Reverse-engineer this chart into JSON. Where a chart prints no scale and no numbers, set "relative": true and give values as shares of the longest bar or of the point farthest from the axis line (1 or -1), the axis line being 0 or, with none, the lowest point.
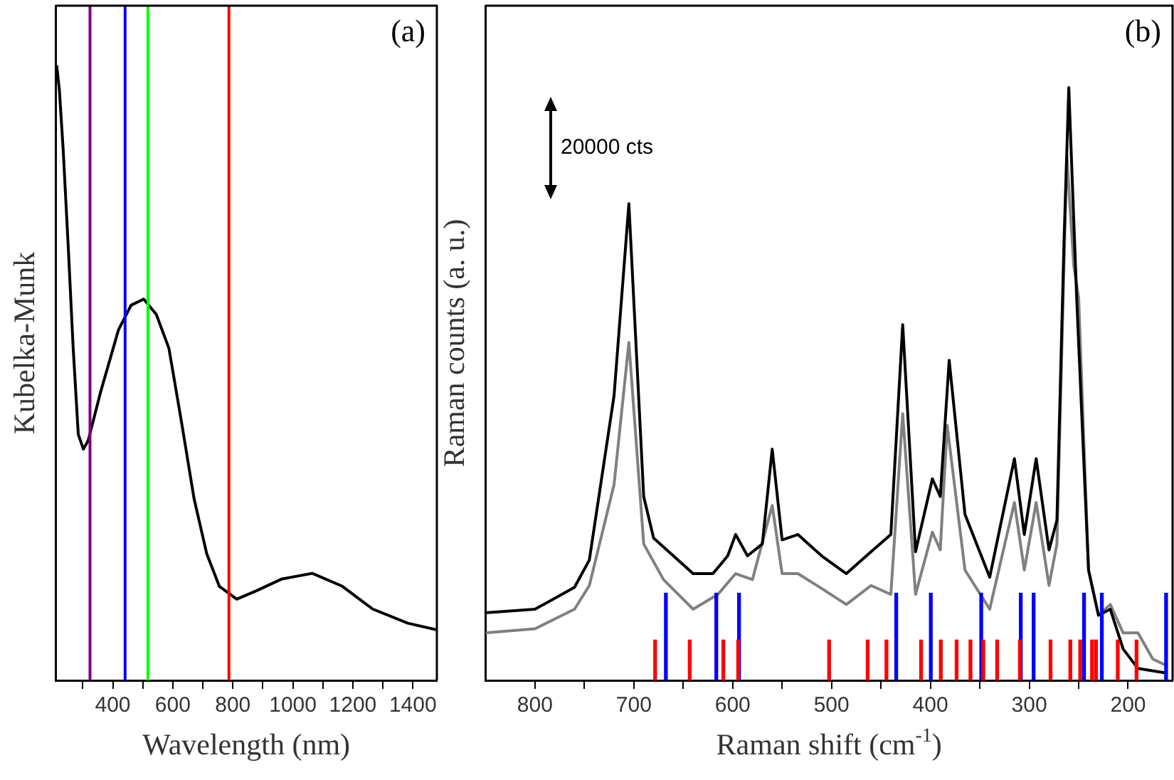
{
  "chart_data": [
    {
      "type": "line",
      "xlabel": "Wavelength (nm)",
      "ylabel": "Kubelka-Munk",
      "annotations": [
        "(a)"
      ],
      "relative": true,
      "legend": false,
      "grid": false,
      "xlim": [
        210,
        1480
      ],
      "xticks": [
        {
          "value": 300,
          "label": null
        },
        400,
        {
          "value": 500,
          "label": null
        },
        600,
        {
          "value": 700,
          "label": null
        },
        800,
        {
          "value": 900,
          "label": null
        },
        1000,
        {
          "value": 1100,
          "label": null
        },
        1200,
        {
          "value": 1300,
          "label": null
        },
        1400
      ],
      "series": [
        {
          "color": "#000000",
          "x": [
            213,
            222,
            235,
            252,
            268,
            285,
            302,
            318,
            360,
            419,
            461,
            503,
            545,
            587,
            629,
            671,
            713,
            755,
            813,
            880,
            964,
            1065,
            1165,
            1266,
            1383,
            1480
          ],
          "values": [
            1.0,
            0.96,
            0.86,
            0.7,
            0.54,
            0.4,
            0.376,
            0.39,
            0.47,
            0.57,
            0.61,
            0.62,
            0.595,
            0.54,
            0.42,
            0.295,
            0.206,
            0.153,
            0.132,
            0.146,
            0.165,
            0.174,
            0.153,
            0.116,
            0.093,
            0.082
          ]
        }
      ],
      "ref_lines": [
        {
          "axis": "x",
          "value": 324,
          "color": "#800080"
        },
        {
          "axis": "x",
          "value": 441,
          "color": "#0000ff"
        },
        {
          "axis": "x",
          "value": 517,
          "color": "#00ff00"
        },
        {
          "axis": "x",
          "value": 787,
          "color": "#ff0000"
        }
      ]
    },
    {
      "type": "line",
      "xlabel": "Raman shift (cm$^{-1}$)",
      "ylabel": "Raman counts (a. u.)",
      "annotations": [
        "(b)",
        "20000 cts"
      ],
      "relative": true,
      "legend": false,
      "grid": false,
      "xlim": [
        850,
        155
      ],
      "xticks": [
        800,
        {
          "value": 750,
          "label": null
        },
        700,
        {
          "value": 650,
          "label": null
        },
        600,
        {
          "value": 550,
          "label": null
        },
        500,
        {
          "value": 450,
          "label": null
        },
        400,
        {
          "value": 350,
          "label": null
        },
        300,
        {
          "value": 250,
          "label": null
        },
        200
      ],
      "series": [
        {
          "color": "#000000",
          "x": [
            850,
            800,
            760,
            745,
            720,
            705,
            690,
            680,
            660,
            640,
            620,
            605,
            597,
            585,
            570,
            560,
            550,
            534,
            510,
            485,
            460,
            440,
            428,
            415,
            398,
            390,
            381,
            365,
            340,
            315,
            305,
            293,
            280,
            272,
            265,
            260,
            252,
            240,
            230,
            218,
            205,
            190,
            160
          ],
          "values": [
            0.114,
            0.12,
            0.157,
            0.203,
            0.48,
            0.804,
            0.31,
            0.24,
            0.21,
            0.18,
            0.18,
            0.21,
            0.246,
            0.21,
            0.23,
            0.39,
            0.237,
            0.246,
            0.21,
            0.18,
            0.217,
            0.246,
            0.6,
            0.217,
            0.34,
            0.31,
            0.54,
            0.28,
            0.174,
            0.374,
            0.246,
            0.374,
            0.22,
            0.27,
            0.73,
            1.0,
            0.645,
            0.186,
            0.11,
            0.12,
            0.053,
            0.02,
            0.012
          ]
        },
        {
          "color": "#808080",
          "x": [
            850,
            800,
            760,
            745,
            720,
            705,
            690,
            670,
            640,
            615,
            597,
            580,
            560,
            550,
            534,
            510,
            485,
            460,
            440,
            428,
            415,
            398,
            390,
            383,
            365,
            340,
            315,
            305,
            293,
            280,
            272,
            262,
            255,
            250,
            240,
            230,
            218,
            205,
            190,
            175,
            160
          ],
          "values": [
            0.08,
            0.087,
            0.12,
            0.16,
            0.33,
            0.57,
            0.23,
            0.17,
            0.12,
            0.145,
            0.18,
            0.17,
            0.295,
            0.18,
            0.18,
            0.155,
            0.128,
            0.16,
            0.145,
            0.45,
            0.145,
            0.25,
            0.22,
            0.43,
            0.186,
            0.12,
            0.3,
            0.186,
            0.3,
            0.16,
            0.23,
            0.886,
            0.7,
            0.645,
            0.186,
            0.11,
            0.128,
            0.08,
            0.08,
            0.036,
            0.024
          ]
        },
        {
          "type": "bar",
          "color": "#0000ff",
          "x": [
            669,
            618,
            595,
            436,
            401,
            350,
            310,
            297,
            246,
            228,
            163
          ],
          "values": [
            0.147,
            0.147,
            0.147,
            0.147,
            0.147,
            0.147,
            0.147,
            0.147,
            0.147,
            0.147,
            0.147
          ]
        },
        {
          "type": "bar",
          "color": "#ff0000",
          "x": [
            677,
            642,
            608,
            593,
            501,
            462,
            443,
            408,
            388,
            372,
            358,
            345,
            331,
            308,
            277,
            257,
            247,
            235,
            231,
            209,
            190
          ],
          "values": [
            0.068,
            0.068,
            0.068,
            0.068,
            0.068,
            0.068,
            0.068,
            0.068,
            0.068,
            0.068,
            0.068,
            0.068,
            0.068,
            0.068,
            0.068,
            0.068,
            0.068,
            0.068,
            0.068,
            0.068,
            0.068
          ]
        }
      ]
    }
  ]
}
